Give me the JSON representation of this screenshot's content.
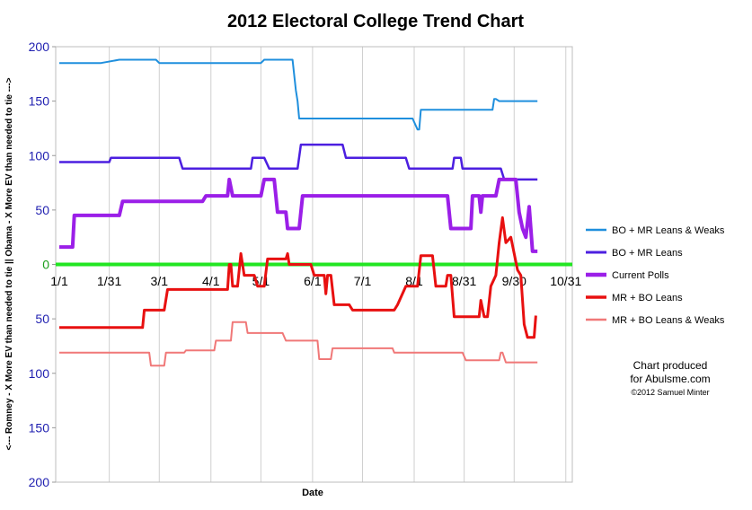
{
  "chart_data": {
    "type": "line",
    "title": "2012 Electoral College Trend Chart",
    "xlabel": "Date",
    "ylabel": "<--- Romney - X More EV than needed to tie ||  Obama - X More EV than needed to tie --->",
    "x_tick_labels": [
      "1/1",
      "1/31",
      "3/1",
      "4/1",
      "5/1",
      "6/1",
      "7/1",
      "8/1",
      "8/31",
      "9/30",
      "10/31"
    ],
    "y_tick_labels": [
      "200",
      "150",
      "100",
      "50",
      "0",
      "50",
      "100",
      "150",
      "200"
    ],
    "y_range": [
      -200,
      200
    ],
    "legend_placement": "right",
    "grid": "vertical monthly lines",
    "series": [
      {
        "name": "BO + MR Leans & Weaks",
        "color": "#1f8fdd",
        "points": [
          [
            "1/1",
            185
          ],
          [
            "1/26",
            185
          ],
          [
            "2/6",
            188
          ],
          [
            "2/28",
            188
          ],
          [
            "3/1",
            185
          ],
          [
            "5/1",
            185
          ],
          [
            "5/3",
            188
          ],
          [
            "5/20",
            188
          ],
          [
            "5/22",
            160
          ],
          [
            "5/23",
            150
          ],
          [
            "5/24",
            134
          ],
          [
            "7/31",
            134
          ],
          [
            "8/3",
            124
          ],
          [
            "8/4",
            124
          ],
          [
            "8/5",
            142
          ],
          [
            "9/17",
            142
          ],
          [
            "9/18",
            152
          ],
          [
            "9/19",
            152
          ],
          [
            "9/21",
            150
          ],
          [
            "10/14",
            150
          ]
        ]
      },
      {
        "name": "BO + MR Leans",
        "color": "#4c1fe0",
        "points": [
          [
            "1/1",
            94
          ],
          [
            "1/31",
            94
          ],
          [
            "2/1",
            98
          ],
          [
            "3/13",
            98
          ],
          [
            "3/15",
            88
          ],
          [
            "4/25",
            88
          ],
          [
            "4/26",
            98
          ],
          [
            "5/3",
            98
          ],
          [
            "5/6",
            88
          ],
          [
            "5/23",
            88
          ],
          [
            "5/25",
            110
          ],
          [
            "6/19",
            110
          ],
          [
            "6/21",
            98
          ],
          [
            "7/27",
            98
          ],
          [
            "7/29",
            88
          ],
          [
            "8/24",
            88
          ],
          [
            "8/25",
            98
          ],
          [
            "8/29",
            98
          ],
          [
            "8/30",
            88
          ],
          [
            "9/22",
            88
          ],
          [
            "9/24",
            78
          ],
          [
            "10/14",
            78
          ]
        ]
      },
      {
        "name": "Current Polls",
        "color": "#9b1fe8",
        "points": [
          [
            "1/1",
            16
          ],
          [
            "1/9",
            16
          ],
          [
            "1/10",
            45
          ],
          [
            "2/6",
            45
          ],
          [
            "2/8",
            58
          ],
          [
            "3/27",
            58
          ],
          [
            "3/29",
            63
          ],
          [
            "4/11",
            63
          ],
          [
            "4/12",
            78
          ],
          [
            "4/14",
            63
          ],
          [
            "5/1",
            63
          ],
          [
            "5/3",
            78
          ],
          [
            "5/9",
            78
          ],
          [
            "5/11",
            48
          ],
          [
            "5/16",
            48
          ],
          [
            "5/17",
            33
          ],
          [
            "5/24",
            33
          ],
          [
            "5/26",
            63
          ],
          [
            "8/21",
            63
          ],
          [
            "8/23",
            33
          ],
          [
            "9/4",
            33
          ],
          [
            "9/5",
            63
          ],
          [
            "9/9",
            63
          ],
          [
            "9/10",
            48
          ],
          [
            "9/11",
            63
          ],
          [
            "9/19",
            63
          ],
          [
            "9/21",
            78
          ],
          [
            "10/1",
            78
          ],
          [
            "10/3",
            48
          ],
          [
            "10/5",
            33
          ],
          [
            "10/7",
            25
          ],
          [
            "10/9",
            53
          ],
          [
            "10/11",
            12
          ],
          [
            "10/14",
            12
          ]
        ]
      },
      {
        "name": "MR + BO Leans",
        "color": "#e81010",
        "points": [
          [
            "1/1",
            -58
          ],
          [
            "2/20",
            -58
          ],
          [
            "2/21",
            -42
          ],
          [
            "3/4",
            -42
          ],
          [
            "3/6",
            -23
          ],
          [
            "4/11",
            -23
          ],
          [
            "4/12",
            0
          ],
          [
            "4/13",
            0
          ],
          [
            "4/14",
            -20
          ],
          [
            "4/17",
            -20
          ],
          [
            "4/19",
            10
          ],
          [
            "4/21",
            -10
          ],
          [
            "4/27",
            -10
          ],
          [
            "4/29",
            -20
          ],
          [
            "5/3",
            -20
          ],
          [
            "5/5",
            5
          ],
          [
            "5/16",
            5
          ],
          [
            "5/17",
            10
          ],
          [
            "5/18",
            0
          ],
          [
            "5/31",
            0
          ],
          [
            "6/2",
            -10
          ],
          [
            "6/8",
            -10
          ],
          [
            "6/9",
            -27
          ],
          [
            "6/10",
            -10
          ],
          [
            "6/12",
            -10
          ],
          [
            "6/14",
            -37
          ],
          [
            "6/23",
            -37
          ],
          [
            "6/25",
            -42
          ],
          [
            "7/20",
            -42
          ],
          [
            "7/22",
            -37
          ],
          [
            "7/27",
            -20
          ],
          [
            "8/3",
            -20
          ],
          [
            "8/5",
            8
          ],
          [
            "8/12",
            8
          ],
          [
            "8/14",
            -20
          ],
          [
            "8/20",
            -20
          ],
          [
            "8/21",
            -10
          ],
          [
            "8/23",
            -10
          ],
          [
            "8/25",
            -48
          ],
          [
            "9/9",
            -48
          ],
          [
            "9/10",
            -33
          ],
          [
            "9/12",
            -48
          ],
          [
            "9/14",
            -48
          ],
          [
            "9/16",
            -20
          ],
          [
            "9/19",
            -10
          ],
          [
            "9/21",
            20
          ],
          [
            "9/23",
            43
          ],
          [
            "9/25",
            20
          ],
          [
            "9/28",
            25
          ],
          [
            "10/2",
            -5
          ],
          [
            "10/4",
            -10
          ],
          [
            "10/6",
            -55
          ],
          [
            "10/8",
            -67
          ],
          [
            "10/12",
            -67
          ],
          [
            "10/13",
            -47
          ]
        ]
      },
      {
        "name": "MR + BO Leans & Weaks",
        "color": "#f07878",
        "points": [
          [
            "1/1",
            -81
          ],
          [
            "2/24",
            -81
          ],
          [
            "2/25",
            -93
          ],
          [
            "3/4",
            -93
          ],
          [
            "3/5",
            -81
          ],
          [
            "3/16",
            -81
          ],
          [
            "3/17",
            -79
          ],
          [
            "4/3",
            -79
          ],
          [
            "4/4",
            -70
          ],
          [
            "4/13",
            -70
          ],
          [
            "4/14",
            -53
          ],
          [
            "4/22",
            -53
          ],
          [
            "4/23",
            -63
          ],
          [
            "5/14",
            -63
          ],
          [
            "5/16",
            -70
          ],
          [
            "6/4",
            -70
          ],
          [
            "6/5",
            -87
          ],
          [
            "6/12",
            -87
          ],
          [
            "6/13",
            -77
          ],
          [
            "7/19",
            -77
          ],
          [
            "7/20",
            -81
          ],
          [
            "8/30",
            -81
          ],
          [
            "9/1",
            -88
          ],
          [
            "9/21",
            -88
          ],
          [
            "9/22",
            -81
          ],
          [
            "9/23",
            -81
          ],
          [
            "9/25",
            -90
          ],
          [
            "10/14",
            -90
          ]
        ]
      }
    ],
    "zero_line_color": "#22e622"
  },
  "credit": {
    "line1": "Chart produced",
    "line2": "for Abulsme.com",
    "line3": "©2012 Samuel Minter"
  }
}
